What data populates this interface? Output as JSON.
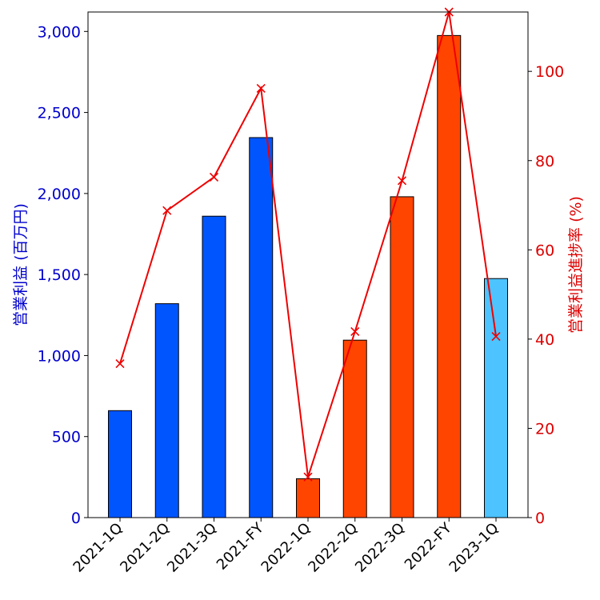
{
  "chart_data": {
    "type": "bar",
    "categories": [
      "2021-1Q",
      "2021-2Q",
      "2021-3Q",
      "2021-FY",
      "2022-1Q",
      "2022-2Q",
      "2022-3Q",
      "2022-FY",
      "2023-1Q"
    ],
    "bar_values": [
      660,
      1320,
      1860,
      2345,
      240,
      1095,
      1980,
      2975,
      1475
    ],
    "bar_colors": [
      "#0055ff",
      "#0055ff",
      "#0055ff",
      "#0055ff",
      "#ff4500",
      "#ff4500",
      "#ff4500",
      "#ff4500",
      "#4dc3ff"
    ],
    "progress_values": [
      34.5,
      68.8,
      76.3,
      96.2,
      9.1,
      41.7,
      75.5,
      113.3,
      40.6
    ],
    "line_color": "#ee0000",
    "ylabel_left": "営業利益 (百万円)",
    "ylabel_right": "営業利益進捗率 (%)",
    "y_left_lim": [
      0,
      3120
    ],
    "y_right_lim": [
      0,
      113.3
    ],
    "y_left_ticks": [
      0,
      500,
      1000,
      1500,
      2000,
      2500,
      3000
    ],
    "y_left_tick_labels": [
      "0",
      "500",
      "1,000",
      "1,500",
      "2,000",
      "2,500",
      "3,000"
    ],
    "y_right_ticks": [
      0,
      20,
      40,
      60,
      80,
      100
    ],
    "y_right_tick_labels": [
      "0",
      "20",
      "40",
      "60",
      "80",
      "100"
    ],
    "left_axis_color": "#0000cc",
    "right_axis_color": "#dd0000",
    "grid": false
  }
}
